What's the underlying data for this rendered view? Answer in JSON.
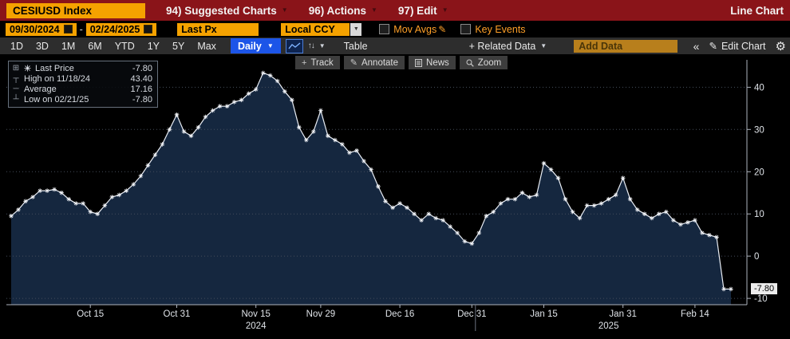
{
  "titlebar": {
    "ticker": "CESIUSD Index",
    "menu_suggested": "94) Suggested Charts",
    "menu_actions": "96) Actions",
    "menu_edit": "97) Edit",
    "right_label": "Line Chart"
  },
  "controls": {
    "date_from": "09/30/2024",
    "date_to": "02/24/2025",
    "field": "Last Px",
    "currency": "Local CCY",
    "mov_avgs_label": "Mov Avgs",
    "key_events_label": "Key Events"
  },
  "toolbar": {
    "periods": [
      "1D",
      "3D",
      "1M",
      "6M",
      "YTD",
      "1Y",
      "5Y",
      "Max"
    ],
    "frequency": "Daily",
    "table_label": "Table",
    "related_data_label": "+ Related Data",
    "add_data_placeholder": "Add Data",
    "collapse_icon": "«",
    "edit_chart_label": "Edit Chart"
  },
  "chart_overlay": {
    "track": "Track",
    "annotate": "Annotate",
    "news": "News",
    "zoom": "Zoom"
  },
  "legend": {
    "rows": [
      {
        "label": "Last Price",
        "value": "-7.80"
      },
      {
        "label": "High on 11/18/24",
        "value": "43.40"
      },
      {
        "label": "Average",
        "value": "17.16"
      },
      {
        "label": "Low on 02/21/25",
        "value": "-7.80"
      }
    ]
  },
  "axis": {
    "last_value_label": "-7.80"
  },
  "chart_data": {
    "type": "area",
    "title": "CESIUSD Index Last Px (Local CCY), Daily, 09/30/2024 - 02/24/2025",
    "xlabel": "",
    "ylabel": "",
    "ylim": [
      -11.5,
      46.5
    ],
    "yticks": [
      40,
      30,
      20,
      10,
      0,
      -10
    ],
    "grid": "dotted-horizontal",
    "line_color": "#e9edf4",
    "fill_color": "#15273f",
    "grid_color": "#454d5b",
    "marker": "star",
    "last_price": -7.8,
    "high": {
      "date": "11/18/24",
      "value": 43.4
    },
    "average": 17.16,
    "low": {
      "date": "02/21/25",
      "value": -7.8
    },
    "xticks": [
      {
        "label": "Oct 15",
        "date": "2024-10-15"
      },
      {
        "label": "Oct 31",
        "date": "2024-10-31"
      },
      {
        "label": "Nov 15",
        "date": "2024-11-15"
      },
      {
        "label": "Nov 29",
        "date": "2024-11-29"
      },
      {
        "label": "Dec 16",
        "date": "2024-12-16"
      },
      {
        "label": "Dec 31",
        "date": "2024-12-31"
      },
      {
        "label": "Jan 15",
        "date": "2025-01-15"
      },
      {
        "label": "Jan 31",
        "date": "2025-01-31"
      },
      {
        "label": "Feb 14",
        "date": "2025-02-14"
      }
    ],
    "year_labels": [
      {
        "label": "2024",
        "date": "2024-11-15"
      },
      {
        "label": "2025",
        "date": "2025-01-29"
      }
    ],
    "year_separator_date": "2024-12-31",
    "x": [
      "2024-09-30",
      "2024-10-01",
      "2024-10-02",
      "2024-10-03",
      "2024-10-04",
      "2024-10-07",
      "2024-10-08",
      "2024-10-09",
      "2024-10-10",
      "2024-10-11",
      "2024-10-14",
      "2024-10-15",
      "2024-10-16",
      "2024-10-17",
      "2024-10-18",
      "2024-10-21",
      "2024-10-22",
      "2024-10-23",
      "2024-10-24",
      "2024-10-25",
      "2024-10-28",
      "2024-10-29",
      "2024-10-30",
      "2024-10-31",
      "2024-11-01",
      "2024-11-04",
      "2024-11-05",
      "2024-11-06",
      "2024-11-07",
      "2024-11-08",
      "2024-11-11",
      "2024-11-12",
      "2024-11-13",
      "2024-11-14",
      "2024-11-15",
      "2024-11-18",
      "2024-11-19",
      "2024-11-20",
      "2024-11-21",
      "2024-11-22",
      "2024-11-25",
      "2024-11-26",
      "2024-11-27",
      "2024-11-29",
      "2024-12-02",
      "2024-12-03",
      "2024-12-04",
      "2024-12-05",
      "2024-12-06",
      "2024-12-09",
      "2024-12-10",
      "2024-12-11",
      "2024-12-12",
      "2024-12-13",
      "2024-12-16",
      "2024-12-17",
      "2024-12-18",
      "2024-12-19",
      "2024-12-20",
      "2024-12-23",
      "2024-12-24",
      "2024-12-26",
      "2024-12-27",
      "2024-12-30",
      "2024-12-31",
      "2025-01-02",
      "2025-01-03",
      "2025-01-06",
      "2025-01-07",
      "2025-01-08",
      "2025-01-09",
      "2025-01-10",
      "2025-01-13",
      "2025-01-14",
      "2025-01-15",
      "2025-01-16",
      "2025-01-17",
      "2025-01-21",
      "2025-01-22",
      "2025-01-23",
      "2025-01-24",
      "2025-01-27",
      "2025-01-28",
      "2025-01-29",
      "2025-01-30",
      "2025-01-31",
      "2025-02-03",
      "2025-02-04",
      "2025-02-05",
      "2025-02-06",
      "2025-02-07",
      "2025-02-10",
      "2025-02-11",
      "2025-02-12",
      "2025-02-13",
      "2025-02-14",
      "2025-02-18",
      "2025-02-19",
      "2025-02-20",
      "2025-02-21",
      "2025-02-24"
    ],
    "values": [
      9.5,
      11.0,
      13.0,
      14.0,
      15.5,
      15.5,
      15.8,
      15.0,
      13.5,
      12.5,
      12.5,
      10.5,
      10.0,
      12.0,
      14.0,
      14.5,
      15.5,
      17.0,
      19.0,
      21.5,
      24.0,
      26.5,
      30.0,
      33.5,
      29.5,
      28.5,
      30.5,
      33.0,
      34.5,
      35.5,
      35.5,
      36.5,
      37.0,
      38.5,
      39.5,
      43.4,
      42.8,
      41.5,
      39.0,
      37.0,
      30.5,
      27.5,
      29.5,
      34.5,
      28.5,
      27.5,
      26.5,
      24.5,
      25.0,
      22.5,
      20.5,
      16.5,
      13.0,
      11.5,
      12.5,
      11.5,
      10.0,
      8.5,
      10.0,
      9.0,
      8.5,
      7.0,
      5.5,
      3.5,
      3.0,
      5.5,
      9.5,
      10.5,
      12.5,
      13.5,
      13.5,
      15.0,
      14.0,
      14.5,
      22.0,
      20.5,
      18.5,
      13.5,
      10.5,
      9.0,
      12.0,
      12.0,
      12.5,
      13.5,
      14.5,
      18.5,
      13.5,
      11.0,
      10.0,
      9.0,
      10.0,
      10.5,
      8.5,
      7.5,
      8.0,
      8.5,
      5.5,
      5.0,
      4.5,
      -7.8,
      -7.8
    ]
  }
}
